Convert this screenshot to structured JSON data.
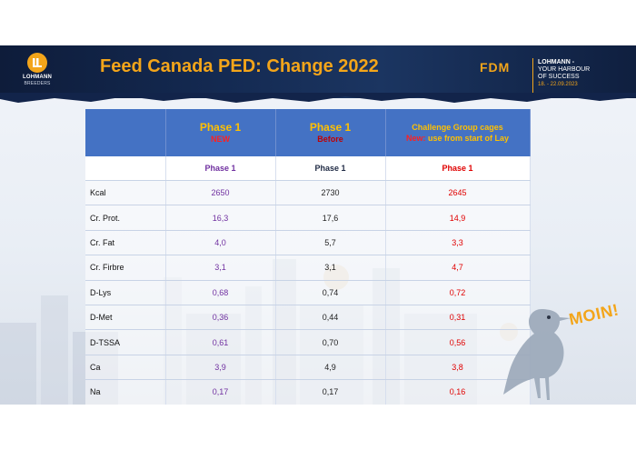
{
  "header": {
    "title": "Feed Canada PED: Change 2022",
    "logo": {
      "name": "LOHMANN",
      "sub": "BREEDERS"
    },
    "event": {
      "short": "FDM",
      "line1": "LOHMANN -",
      "line2": "YOUR",
      "line3": "HARBOUR",
      "line4": "OF SUCCESS",
      "dates": "18. - 22.09.2023"
    }
  },
  "table": {
    "columns": [
      {
        "title": "Phase 1",
        "subtitle": "NEW"
      },
      {
        "title": "Phase 1",
        "subtitle": "Before"
      },
      {
        "title": "Challenge Group cages",
        "subtitle_prefix": "New:",
        "subtitle": "use from start of Lay"
      }
    ],
    "subheaders": [
      "Phase 1",
      "Phase 1",
      "Phase 1"
    ],
    "rows": [
      {
        "label": "Kcal",
        "values": [
          "2650",
          "2730",
          "2645"
        ]
      },
      {
        "label": "Cr. Prot.",
        "values": [
          "16,3",
          "17,6",
          "14,9"
        ]
      },
      {
        "label": "Cr. Fat",
        "values": [
          "4,0",
          "5,7",
          "3,3"
        ]
      },
      {
        "label": "Cr. Firbre",
        "values": [
          "3,1",
          "3,1",
          "4,7"
        ]
      },
      {
        "label": "D-Lys",
        "values": [
          "0,68",
          "0,74",
          "0,72"
        ]
      },
      {
        "label": "D-Met",
        "values": [
          "0,36",
          "0,44",
          "0,31"
        ]
      },
      {
        "label": "D-TSSA",
        "values": [
          "0,61",
          "0,70",
          "0,56"
        ]
      },
      {
        "label": "Ca",
        "values": [
          "3,9",
          "4,9",
          "3,8"
        ]
      },
      {
        "label": "Na",
        "values": [
          "0,17",
          "0,17",
          "0,16"
        ]
      }
    ]
  },
  "mascot": {
    "text": "MOIN!",
    "icon": "seagull-icon"
  },
  "colors": {
    "accent": "#f3a51a",
    "header_blue": "#4472c4",
    "new_col": "#7030a0",
    "before_col": "#1f2a44",
    "challenge_col": "#e00000"
  }
}
